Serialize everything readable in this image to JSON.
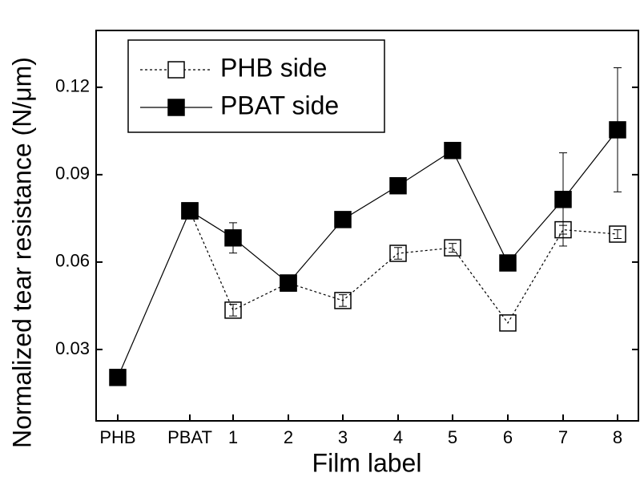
{
  "chart_data": {
    "type": "line",
    "x_label": "Film label",
    "y_label": "Normalized tear resistance (N/μm)",
    "categories": [
      "PHB",
      "PBAT",
      "1",
      "2",
      "3",
      "4",
      "5",
      "6",
      "7",
      "8"
    ],
    "ylim": [
      0.0055,
      0.1395
    ],
    "yticks": [
      0.03,
      0.06,
      0.09,
      0.12
    ],
    "legend": "top-left",
    "series": [
      {
        "name": "PHB side",
        "color": "#000000",
        "marker": "open-square",
        "dash": true,
        "values": [
          null,
          0.0776,
          0.0435,
          0.0528,
          0.0468,
          0.063,
          0.0649,
          0.0391,
          0.0711,
          0.0696
        ],
        "errors": [
          null,
          null,
          0.002,
          null,
          0.002,
          0.002,
          0.0015,
          null,
          0.0015,
          0.0015
        ]
      },
      {
        "name": "PBAT side",
        "color": "#000000",
        "marker": "filled-square",
        "dash": false,
        "values": [
          0.0204,
          0.0776,
          0.0683,
          0.0528,
          0.0746,
          0.0862,
          0.0983,
          0.0597,
          0.0815,
          0.1054
        ],
        "errors": [
          null,
          null,
          0.0052,
          0.001,
          null,
          null,
          null,
          0.002,
          0.016,
          0.0213
        ]
      }
    ]
  }
}
